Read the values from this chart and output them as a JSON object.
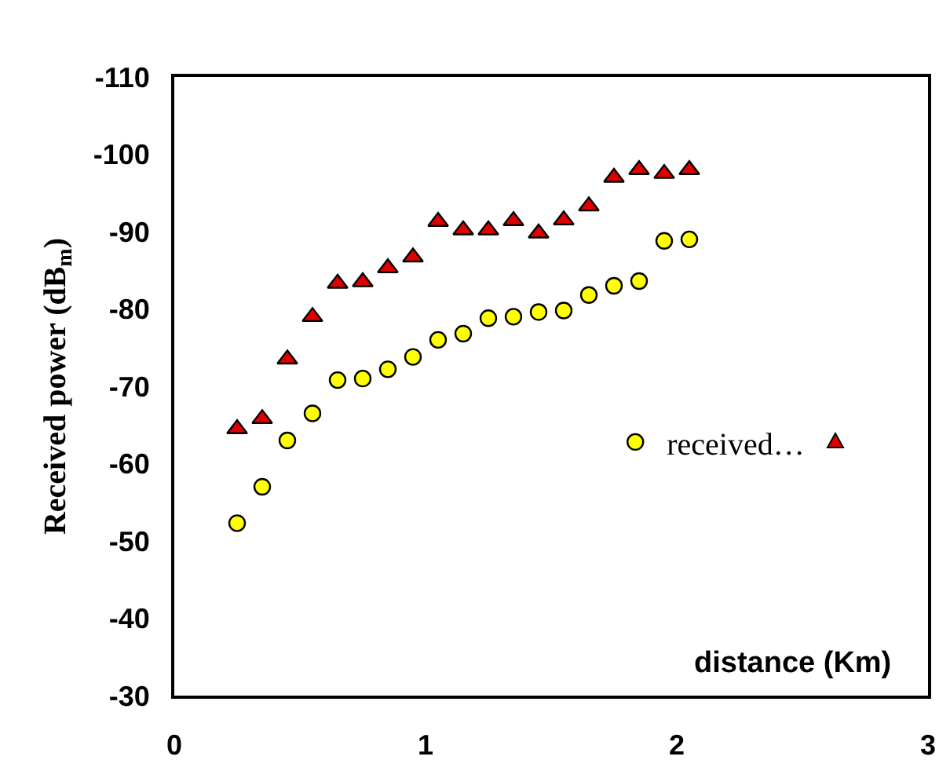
{
  "chart_data": {
    "type": "scatter",
    "xlabel": "distance (Km)",
    "ylabel": "Received power (dB$_{m}$)",
    "x": [
      0.25,
      0.35,
      0.45,
      0.55,
      0.65,
      0.75,
      0.85,
      0.95,
      1.05,
      1.15,
      1.25,
      1.35,
      1.45,
      1.55,
      1.65,
      1.75,
      1.85,
      1.95,
      2.05
    ],
    "series": [
      {
        "name": "received…",
        "color": "#ffff00",
        "marker": "circle",
        "values": [
          -52.3,
          -57,
          -63,
          -66.5,
          -70.8,
          -71,
          -72.2,
          -73.8,
          -76,
          -76.8,
          -78.8,
          -79,
          -79.6,
          -79.8,
          -81.8,
          -83,
          -83.6,
          -88.8,
          -89
        ]
      },
      {
        "color": "#e00000",
        "marker": "triangle",
        "values": [
          -64.5,
          -65.8,
          -73.5,
          -79,
          -83.3,
          -83.5,
          -85.3,
          -86.7,
          -91.3,
          -90.2,
          -90.2,
          -91.4,
          -89.8,
          -91.5,
          -93.3,
          -97,
          -98,
          -97.5,
          -98
        ]
      }
    ],
    "xlim": [
      0,
      3
    ],
    "xticks": [
      0,
      1,
      2,
      3
    ],
    "ylim": [
      -30,
      -110
    ],
    "yticks": [
      -110,
      -100,
      -90,
      -80,
      -70,
      -60,
      -50,
      -40,
      -30
    ],
    "grid": false,
    "legend": "right"
  }
}
